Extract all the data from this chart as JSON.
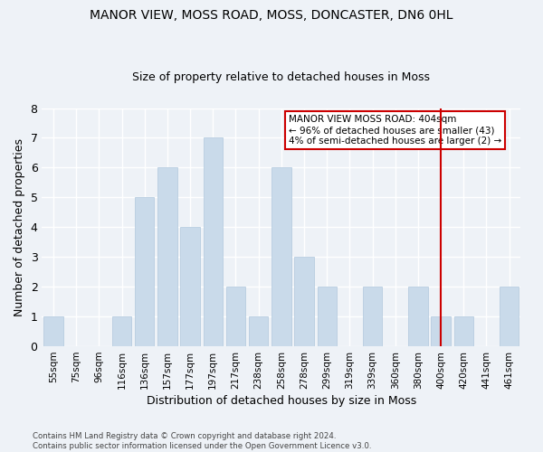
{
  "title1": "MANOR VIEW, MOSS ROAD, MOSS, DONCASTER, DN6 0HL",
  "title2": "Size of property relative to detached houses in Moss",
  "xlabel": "Distribution of detached houses by size in Moss",
  "ylabel": "Number of detached properties",
  "categories": [
    "55sqm",
    "75sqm",
    "96sqm",
    "116sqm",
    "136sqm",
    "157sqm",
    "177sqm",
    "197sqm",
    "217sqm",
    "238sqm",
    "258sqm",
    "278sqm",
    "299sqm",
    "319sqm",
    "339sqm",
    "360sqm",
    "380sqm",
    "400sqm",
    "420sqm",
    "441sqm",
    "461sqm"
  ],
  "values": [
    1,
    0,
    0,
    1,
    5,
    6,
    4,
    7,
    2,
    1,
    6,
    3,
    2,
    0,
    2,
    0,
    2,
    1,
    1,
    0,
    2
  ],
  "bar_color": "#c9daea",
  "bar_edge_color": "#b0c8dc",
  "vline_x": 17,
  "vline_color": "#cc0000",
  "annotation_text": "MANOR VIEW MOSS ROAD: 404sqm\n← 96% of detached houses are smaller (43)\n4% of semi-detached houses are larger (2) →",
  "annotation_box_color": "#ffffff",
  "annotation_box_edge": "#cc0000",
  "ylim": [
    0,
    8
  ],
  "yticks": [
    0,
    1,
    2,
    3,
    4,
    5,
    6,
    7,
    8
  ],
  "footer": "Contains HM Land Registry data © Crown copyright and database right 2024.\nContains public sector information licensed under the Open Government Licence v3.0.",
  "background_color": "#eef2f7",
  "grid_color": "#ffffff"
}
